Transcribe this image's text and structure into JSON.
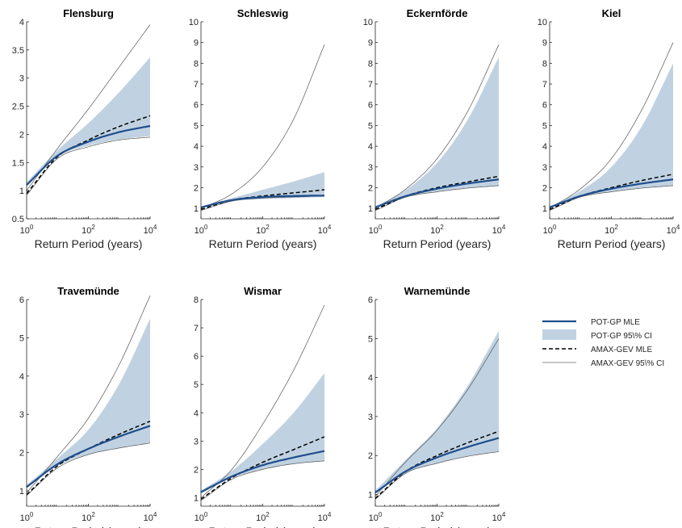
{
  "chart_data": {
    "type": "line",
    "xlabel": "Return Period (years)",
    "x_scale": "log",
    "xlim": [
      1,
      10000
    ],
    "x_ticks": [
      1,
      100,
      10000
    ],
    "x_tick_labels": [
      {
        "base": "10",
        "exp": "0"
      },
      {
        "base": "10",
        "exp": "2"
      },
      {
        "base": "10",
        "exp": "4"
      }
    ],
    "x_return_periods": [
      1,
      10,
      100,
      1000,
      10000
    ],
    "colors": {
      "pot_mle": "#1f4e8c",
      "pot_ci": "#c0d2e2",
      "amax_mle": "#000000",
      "amax_ci": "#8c8c8c"
    },
    "legend": {
      "position": "right",
      "entries": [
        "POT-GP MLE",
        "POT-GP 95\\% CI",
        "AMAX-GEV MLE",
        "AMAX-GEV 95\\% CI"
      ]
    },
    "panels": [
      {
        "title": "Flensburg",
        "ylim": [
          0.5,
          4
        ],
        "y_ticks": [
          0.5,
          1,
          1.5,
          2,
          2.5,
          3,
          3.5,
          4
        ],
        "series": [
          {
            "name": "POT-GP MLE",
            "values": [
              1.1,
              1.62,
              1.87,
              2.04,
              2.15
            ]
          },
          {
            "name": "POT-GP 95\\% CI lower",
            "values": [
              1.08,
              1.6,
              1.8,
              1.91,
              1.97
            ]
          },
          {
            "name": "POT-GP 95\\% CI upper",
            "values": [
              1.15,
              1.72,
              2.2,
              2.75,
              3.37
            ]
          },
          {
            "name": "AMAX-GEV MLE",
            "values": [
              0.95,
              1.6,
              1.9,
              2.14,
              2.33
            ]
          },
          {
            "name": "AMAX-GEV 95\\% CI lower",
            "values": [
              0.92,
              1.57,
              1.78,
              1.9,
              1.95
            ]
          },
          {
            "name": "AMAX-GEV 95\\% CI upper",
            "values": [
              1.0,
              1.75,
              2.45,
              3.2,
              3.95
            ]
          }
        ]
      },
      {
        "title": "Schleswig",
        "ylim": [
          0.5,
          10
        ],
        "y_ticks": [
          1,
          2,
          3,
          4,
          5,
          6,
          7,
          8,
          9,
          10
        ],
        "series": [
          {
            "name": "POT-GP MLE",
            "values": [
              1.05,
              1.4,
              1.55,
              1.6,
              1.62
            ]
          },
          {
            "name": "POT-GP 95\\% CI lower",
            "values": [
              1.02,
              1.35,
              1.45,
              1.5,
              1.55
            ]
          },
          {
            "name": "POT-GP 95\\% CI upper",
            "values": [
              1.1,
              1.5,
              1.9,
              2.3,
              2.75
            ]
          },
          {
            "name": "AMAX-GEV MLE",
            "values": [
              0.95,
              1.4,
              1.6,
              1.75,
              1.9
            ]
          },
          {
            "name": "AMAX-GEV 95\\% CI lower",
            "values": [
              0.9,
              1.35,
              1.5,
              1.55,
              1.6
            ]
          },
          {
            "name": "AMAX-GEV 95\\% CI upper",
            "values": [
              1.0,
              1.7,
              3.0,
              5.3,
              8.9
            ]
          }
        ]
      },
      {
        "title": "Eckernförde",
        "ylim": [
          0.5,
          10
        ],
        "y_ticks": [
          1,
          2,
          3,
          4,
          5,
          6,
          7,
          8,
          9,
          10
        ],
        "series": [
          {
            "name": "POT-GP MLE",
            "values": [
              1.05,
              1.6,
              1.95,
              2.2,
              2.4
            ]
          },
          {
            "name": "POT-GP 95\\% CI lower",
            "values": [
              1.02,
              1.55,
              1.8,
              1.98,
              2.1
            ]
          },
          {
            "name": "POT-GP 95\\% CI upper",
            "values": [
              1.1,
              1.9,
              3.2,
              5.3,
              8.3
            ]
          },
          {
            "name": "AMAX-GEV MLE",
            "values": [
              0.95,
              1.6,
              2.0,
              2.28,
              2.55
            ]
          },
          {
            "name": "AMAX-GEV 95\\% CI lower",
            "values": [
              0.9,
              1.55,
              1.8,
              1.98,
              2.1
            ]
          },
          {
            "name": "AMAX-GEV 95\\% CI upper",
            "values": [
              1.0,
              1.95,
              3.4,
              5.7,
              8.9
            ]
          }
        ]
      },
      {
        "title": "Kiel",
        "ylim": [
          0.5,
          10
        ],
        "y_ticks": [
          1,
          2,
          3,
          4,
          5,
          6,
          7,
          8,
          9,
          10
        ],
        "series": [
          {
            "name": "POT-GP MLE",
            "values": [
              1.05,
              1.6,
              1.95,
              2.2,
              2.4
            ]
          },
          {
            "name": "POT-GP 95\\% CI lower",
            "values": [
              1.02,
              1.55,
              1.8,
              1.98,
              2.1
            ]
          },
          {
            "name": "POT-GP 95\\% CI upper",
            "values": [
              1.1,
              1.85,
              3.0,
              5.0,
              8.0
            ]
          },
          {
            "name": "AMAX-GEV MLE",
            "values": [
              0.95,
              1.6,
              2.0,
              2.35,
              2.65
            ]
          },
          {
            "name": "AMAX-GEV 95\\% CI lower",
            "values": [
              0.9,
              1.55,
              1.8,
              1.98,
              2.1
            ]
          },
          {
            "name": "AMAX-GEV 95\\% CI upper",
            "values": [
              1.0,
              1.95,
              3.4,
              5.8,
              9.0
            ]
          }
        ]
      },
      {
        "title": "Travemünde",
        "ylim": [
          0.6,
          6
        ],
        "y_ticks": [
          1,
          2,
          3,
          4,
          5,
          6
        ],
        "series": [
          {
            "name": "POT-GP MLE",
            "values": [
              1.1,
              1.7,
              2.1,
              2.42,
              2.7
            ]
          },
          {
            "name": "POT-GP 95\\% CI lower",
            "values": [
              1.08,
              1.65,
              1.95,
              2.12,
              2.25
            ]
          },
          {
            "name": "POT-GP 95\\% CI upper",
            "values": [
              1.15,
              1.85,
              2.6,
              3.8,
              5.5
            ]
          },
          {
            "name": "AMAX-GEV MLE",
            "values": [
              0.9,
              1.65,
              2.1,
              2.48,
              2.82
            ]
          },
          {
            "name": "AMAX-GEV 95\\% CI lower",
            "values": [
              0.88,
              1.6,
              1.95,
              2.12,
              2.25
            ]
          },
          {
            "name": "AMAX-GEV 95\\% CI upper",
            "values": [
              0.95,
              1.9,
              2.9,
              4.3,
              6.1
            ]
          }
        ]
      },
      {
        "title": "Wismar",
        "ylim": [
          0.7,
          8
        ],
        "y_ticks": [
          1,
          2,
          3,
          4,
          5,
          6,
          7,
          8
        ],
        "series": [
          {
            "name": "POT-GP MLE",
            "values": [
              1.2,
              1.75,
              2.15,
              2.42,
              2.65
            ]
          },
          {
            "name": "POT-GP 95\\% CI lower",
            "values": [
              1.15,
              1.7,
              2.0,
              2.2,
              2.3
            ]
          },
          {
            "name": "POT-GP 95\\% CI upper",
            "values": [
              1.25,
              1.95,
              2.9,
              4.0,
              5.4
            ]
          },
          {
            "name": "AMAX-GEV MLE",
            "values": [
              0.95,
              1.7,
              2.25,
              2.7,
              3.15
            ]
          },
          {
            "name": "AMAX-GEV 95\\% CI lower",
            "values": [
              0.9,
              1.65,
              2.0,
              2.2,
              2.3
            ]
          },
          {
            "name": "AMAX-GEV 95\\% CI upper",
            "values": [
              1.0,
              2.0,
              3.6,
              5.5,
              7.8
            ]
          }
        ]
      },
      {
        "title": "Warnemünde",
        "ylim": [
          0.7,
          6
        ],
        "y_ticks": [
          1,
          2,
          3,
          4,
          5,
          6
        ],
        "series": [
          {
            "name": "POT-GP MLE",
            "values": [
              1.05,
              1.6,
              1.95,
              2.22,
              2.45
            ]
          },
          {
            "name": "POT-GP 95\\% CI lower",
            "values": [
              1.02,
              1.55,
              1.8,
              1.98,
              2.1
            ]
          },
          {
            "name": "POT-GP 95\\% CI upper",
            "values": [
              1.1,
              1.9,
              2.7,
              3.8,
              5.2
            ]
          },
          {
            "name": "AMAX-GEV MLE",
            "values": [
              0.9,
              1.6,
              2.0,
              2.33,
              2.62
            ]
          },
          {
            "name": "AMAX-GEV 95\\% CI lower",
            "values": [
              0.88,
              1.55,
              1.8,
              1.98,
              2.1
            ]
          },
          {
            "name": "AMAX-GEV 95\\% CI upper",
            "values": [
              0.95,
              1.85,
              2.65,
              3.7,
              5.0
            ]
          }
        ]
      }
    ]
  }
}
